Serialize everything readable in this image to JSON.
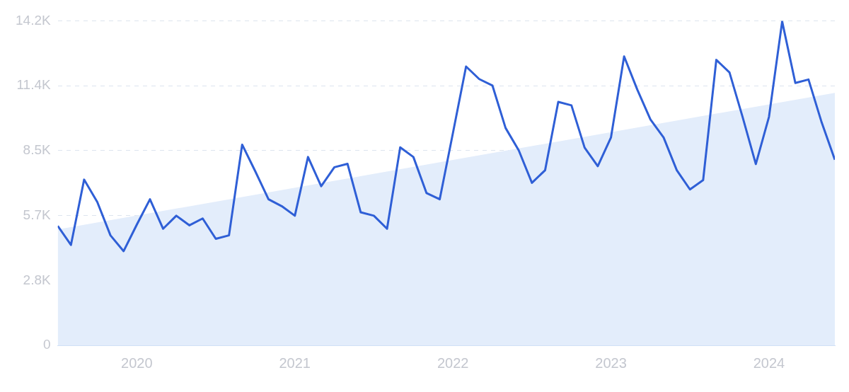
{
  "chart_data": {
    "type": "line",
    "x": [
      "2019-07",
      "2019-08",
      "2019-09",
      "2019-10",
      "2019-11",
      "2019-12",
      "2020-01",
      "2020-02",
      "2020-03",
      "2020-04",
      "2020-05",
      "2020-06",
      "2020-07",
      "2020-08",
      "2020-09",
      "2020-10",
      "2020-11",
      "2020-12",
      "2021-01",
      "2021-02",
      "2021-03",
      "2021-04",
      "2021-05",
      "2021-06",
      "2021-07",
      "2021-08",
      "2021-09",
      "2021-10",
      "2021-11",
      "2021-12",
      "2022-01",
      "2022-02",
      "2022-03",
      "2022-04",
      "2022-05",
      "2022-06",
      "2022-07",
      "2022-08",
      "2022-09",
      "2022-10",
      "2022-11",
      "2022-12",
      "2023-01",
      "2023-02",
      "2023-03",
      "2023-04",
      "2023-05",
      "2023-06",
      "2023-07",
      "2023-08",
      "2023-09",
      "2023-10",
      "2023-11",
      "2023-12",
      "2024-01",
      "2024-02",
      "2024-03",
      "2024-04",
      "2024-05",
      "2024-06"
    ],
    "series": [
      {
        "type": "area",
        "color": "#e3edfb",
        "x": [
          "2019-07",
          "2024-06"
        ],
        "values": [
          5070,
          11050
        ]
      },
      {
        "color": "#2f5fd6",
        "values": [
          5220,
          4390,
          7250,
          6270,
          4810,
          4120,
          5280,
          6390,
          5100,
          5670,
          5250,
          5550,
          4660,
          4810,
          8780,
          7610,
          6390,
          6090,
          5670,
          8240,
          6960,
          7790,
          7940,
          5820,
          5670,
          5100,
          8660,
          8240,
          6660,
          6390,
          9280,
          12200,
          11650,
          11370,
          9510,
          8530,
          7110,
          7660,
          10650,
          10500,
          8650,
          7840,
          9090,
          12640,
          11190,
          9880,
          9090,
          7660,
          6820,
          7230,
          12490,
          11940,
          9980,
          7930,
          10000,
          14170,
          11480,
          11630,
          9750,
          8120
        ]
      }
    ],
    "xlim": [
      "2019-07",
      "2024-06"
    ],
    "xticks": [
      {
        "value": "2020-01",
        "label": "2020"
      },
      {
        "value": "2021-01",
        "label": "2021"
      },
      {
        "value": "2022-01",
        "label": "2022"
      },
      {
        "value": "2023-01",
        "label": "2023"
      },
      {
        "value": "2024-01",
        "label": "2024"
      }
    ],
    "ylim": [
      0,
      14200
    ],
    "yticks": [
      0,
      {
        "value": 2840,
        "label": "2.8K"
      },
      {
        "value": 5680,
        "label": "5.7K"
      },
      {
        "value": 8520,
        "label": "8.5K"
      },
      {
        "value": 11360,
        "label": "11.4K"
      },
      {
        "value": 14200,
        "label": "14.2K"
      }
    ],
    "grid": "y",
    "marker": "none",
    "line_style": "solid"
  }
}
